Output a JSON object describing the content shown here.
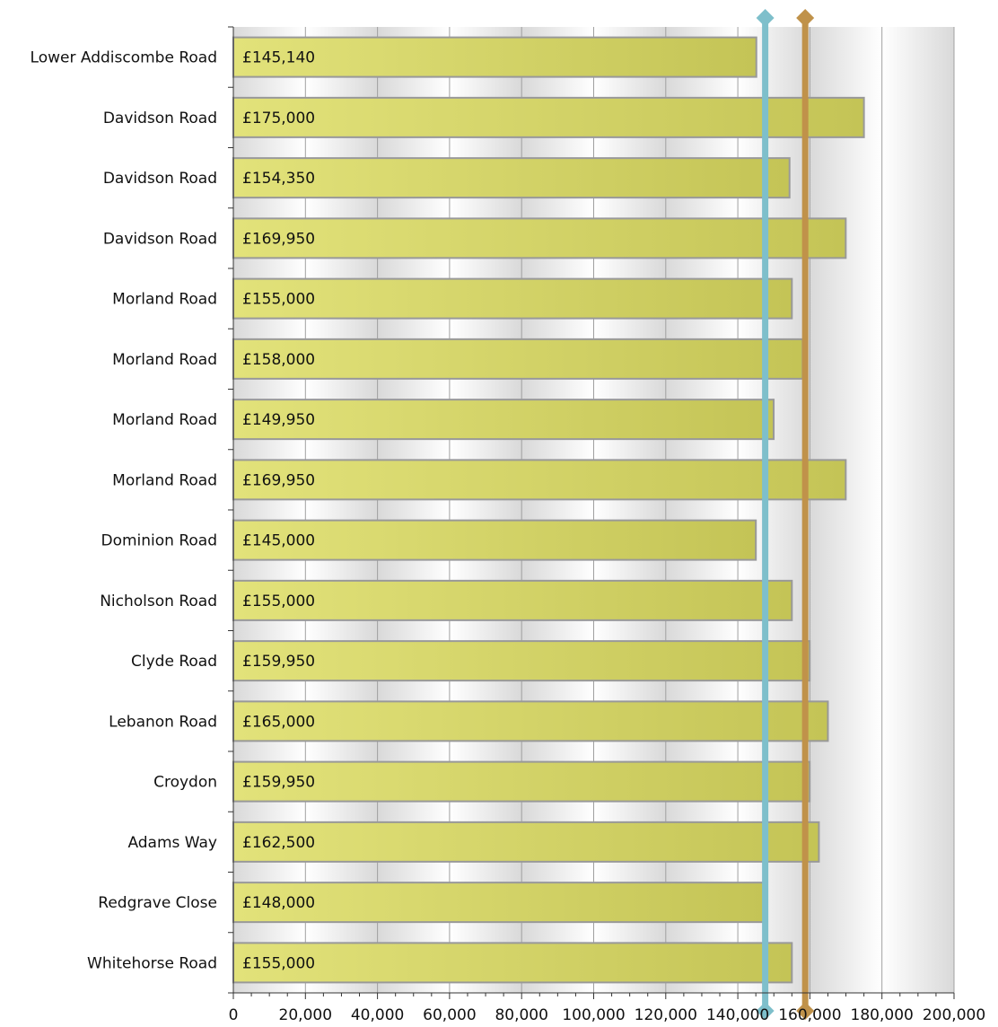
{
  "chart_data": {
    "type": "bar",
    "orientation": "horizontal",
    "categories": [
      "Lower Addiscombe Road",
      "Davidson Road",
      "Davidson Road",
      "Davidson Road",
      "Morland Road",
      "Morland Road",
      "Morland Road",
      "Morland Road",
      "Dominion Road",
      "Nicholson Road",
      "Clyde Road",
      "Lebanon Road",
      "Croydon",
      "Adams Way",
      "Redgrave Close",
      "Whitehorse Road"
    ],
    "values": [
      145140,
      175000,
      154350,
      169950,
      155000,
      158000,
      149950,
      169950,
      145000,
      155000,
      159950,
      165000,
      159950,
      162500,
      148000,
      155000
    ],
    "data_labels": [
      "£145,140",
      "£175,000",
      "£154,350",
      "£169,950",
      "£155,000",
      "£158,000",
      "£149,950",
      "£169,950",
      "£145,000",
      "£155,000",
      "£159,950",
      "£165,000",
      "£159,950",
      "£162,500",
      "£148,000",
      "£155,000"
    ],
    "xlim": [
      0,
      200000
    ],
    "x_ticks": [
      0,
      20000,
      40000,
      60000,
      80000,
      100000,
      120000,
      140000,
      160000,
      180000,
      200000
    ],
    "x_tick_labels": [
      "0",
      "20,000",
      "40,000",
      "60,000",
      "80,000",
      "100,000",
      "120,000",
      "140,000",
      "160,000",
      "180,000",
      "200,000"
    ],
    "reference_lines": [
      {
        "value": 147600,
        "color": "#7ebfcb"
      },
      {
        "value": 158700,
        "color": "#c0924a"
      }
    ],
    "title": "",
    "xlabel": "",
    "ylabel": "",
    "grid": true,
    "legend": "none",
    "colors": {
      "bar_light": "#e2e27a",
      "bar_dark": "#c4c456",
      "bar_border": "#999999",
      "plot_bg_light": "#ffffff",
      "plot_bg_dark": "#d9d9d9",
      "grid": "#a0a0a0"
    }
  }
}
